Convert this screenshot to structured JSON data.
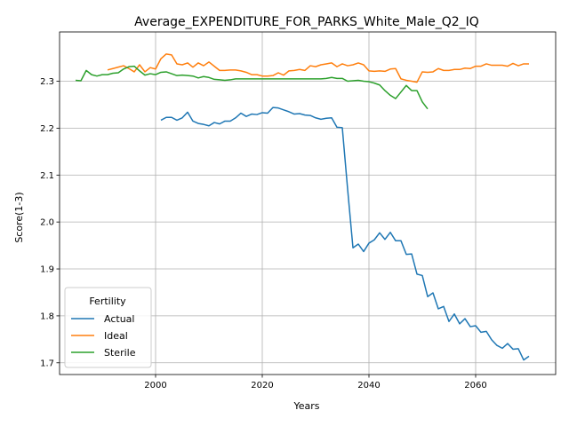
{
  "chart_data": {
    "type": "line",
    "title": "Average_EXPENDITURE_FOR_PARKS_White_Male_Q2_IQ",
    "xlabel": "Years",
    "ylabel": "Score(1-3)",
    "xlim": [
      1982,
      2075
    ],
    "ylim": [
      1.675,
      2.405
    ],
    "x_ticks": [
      2000,
      2020,
      2040,
      2060
    ],
    "y_ticks": [
      1.7,
      1.8,
      1.9,
      2.0,
      2.1,
      2.2,
      2.3
    ],
    "grid": true,
    "legend": {
      "title": "Fertility",
      "placement": "lower-left"
    },
    "series": [
      {
        "name": "Actual",
        "color": "#1f77b4",
        "x": [
          2001,
          2002,
          2003,
          2004,
          2005,
          2006,
          2007,
          2008,
          2009,
          2010,
          2011,
          2012,
          2013,
          2014,
          2015,
          2016,
          2017,
          2018,
          2019,
          2020,
          2021,
          2022,
          2023,
          2024,
          2025,
          2026,
          2027,
          2028,
          2029,
          2030,
          2031,
          2032,
          2033,
          2034,
          2035,
          2036,
          2037,
          2038,
          2039,
          2040,
          2041,
          2042,
          2043,
          2044,
          2045,
          2046,
          2047,
          2048,
          2049,
          2050,
          2051,
          2052,
          2053,
          2054,
          2055,
          2056,
          2057,
          2058,
          2059,
          2060,
          2061,
          2062,
          2063,
          2064,
          2065,
          2066,
          2067,
          2068,
          2069,
          2070
        ],
        "y": [
          2.217,
          2.223,
          2.223,
          2.217,
          2.222,
          2.234,
          2.215,
          2.21,
          2.208,
          2.205,
          2.212,
          2.209,
          2.215,
          2.215,
          2.222,
          2.232,
          2.225,
          2.23,
          2.229,
          2.233,
          2.232,
          2.244,
          2.243,
          2.239,
          2.235,
          2.23,
          2.231,
          2.228,
          2.227,
          2.222,
          2.219,
          2.221,
          2.222,
          2.202,
          2.201,
          2.07,
          1.945,
          1.953,
          1.937,
          1.955,
          1.962,
          1.977,
          1.963,
          1.978,
          1.96,
          1.96,
          1.931,
          1.932,
          1.889,
          1.886,
          1.841,
          1.849,
          1.815,
          1.82,
          1.788,
          1.804,
          1.783,
          1.794,
          1.777,
          1.779,
          1.765,
          1.767,
          1.749,
          1.737,
          1.731,
          1.741,
          1.729,
          1.73,
          1.706,
          1.714
        ]
      },
      {
        "name": "Ideal",
        "color": "#ff7f0e",
        "x": [
          1991,
          1992,
          1993,
          1994,
          1995,
          1996,
          1997,
          1998,
          1999,
          2000,
          2001,
          2002,
          2003,
          2004,
          2005,
          2006,
          2007,
          2008,
          2009,
          2010,
          2011,
          2012,
          2013,
          2014,
          2015,
          2016,
          2017,
          2018,
          2019,
          2020,
          2021,
          2022,
          2023,
          2024,
          2025,
          2026,
          2027,
          2028,
          2029,
          2030,
          2031,
          2032,
          2033,
          2034,
          2035,
          2036,
          2037,
          2038,
          2039,
          2040,
          2041,
          2042,
          2043,
          2044,
          2045,
          2046,
          2047,
          2048,
          2049,
          2050,
          2051,
          2052,
          2053,
          2054,
          2055,
          2056,
          2057,
          2058,
          2059,
          2060,
          2061,
          2062,
          2063,
          2064,
          2065,
          2066,
          2067,
          2068,
          2069,
          2070
        ],
        "y": [
          2.324,
          2.327,
          2.33,
          2.333,
          2.327,
          2.32,
          2.335,
          2.32,
          2.329,
          2.326,
          2.348,
          2.358,
          2.356,
          2.337,
          2.335,
          2.339,
          2.33,
          2.339,
          2.333,
          2.341,
          2.332,
          2.323,
          2.323,
          2.324,
          2.324,
          2.322,
          2.319,
          2.314,
          2.314,
          2.311,
          2.311,
          2.312,
          2.318,
          2.313,
          2.322,
          2.323,
          2.325,
          2.323,
          2.333,
          2.331,
          2.335,
          2.337,
          2.339,
          2.331,
          2.337,
          2.333,
          2.335,
          2.339,
          2.335,
          2.322,
          2.321,
          2.322,
          2.321,
          2.326,
          2.327,
          2.305,
          2.302,
          2.3,
          2.298,
          2.32,
          2.319,
          2.32,
          2.327,
          2.323,
          2.323,
          2.325,
          2.325,
          2.328,
          2.327,
          2.332,
          2.332,
          2.337,
          2.334,
          2.334,
          2.334,
          2.332,
          2.338,
          2.333,
          2.337,
          2.337
        ]
      },
      {
        "name": "Sterile",
        "color": "#2ca02c",
        "x": [
          1985,
          1986,
          1987,
          1988,
          1989,
          1990,
          1991,
          1992,
          1993,
          1994,
          1995,
          1996,
          1997,
          1998,
          1999,
          2000,
          2001,
          2002,
          2003,
          2004,
          2005,
          2006,
          2007,
          2008,
          2009,
          2010,
          2011,
          2012,
          2013,
          2014,
          2015,
          2016,
          2017,
          2018,
          2019,
          2020,
          2021,
          2022,
          2023,
          2024,
          2025,
          2026,
          2027,
          2028,
          2029,
          2030,
          2031,
          2032,
          2033,
          2034,
          2035,
          2036,
          2037,
          2038,
          2039,
          2040,
          2041,
          2042,
          2043,
          2044,
          2045,
          2046,
          2047,
          2048,
          2049,
          2050,
          2051
        ],
        "y": [
          2.302,
          2.301,
          2.323,
          2.314,
          2.311,
          2.314,
          2.314,
          2.317,
          2.318,
          2.326,
          2.331,
          2.332,
          2.322,
          2.313,
          2.316,
          2.314,
          2.319,
          2.32,
          2.316,
          2.312,
          2.313,
          2.312,
          2.311,
          2.307,
          2.31,
          2.308,
          2.304,
          2.303,
          2.302,
          2.303,
          2.305,
          2.305,
          2.305,
          2.305,
          2.305,
          2.305,
          2.305,
          2.305,
          2.305,
          2.305,
          2.305,
          2.305,
          2.305,
          2.305,
          2.305,
          2.305,
          2.305,
          2.306,
          2.308,
          2.306,
          2.306,
          2.3,
          2.301,
          2.302,
          2.3,
          2.299,
          2.296,
          2.292,
          2.28,
          2.27,
          2.263,
          2.277,
          2.291,
          2.28,
          2.28,
          2.256,
          2.241
        ]
      }
    ]
  }
}
